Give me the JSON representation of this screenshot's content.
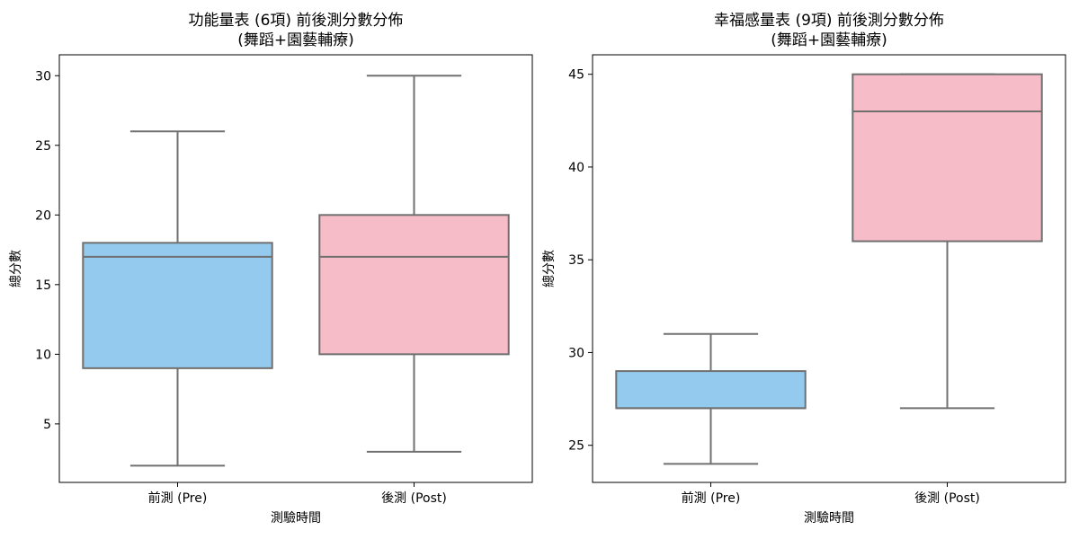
{
  "colors": {
    "pre": "#93CAEE",
    "post": "#F6BCC7",
    "stroke": "#707070"
  },
  "chart_data": [
    {
      "type": "box",
      "title": [
        "功能量表 (6項) 前後測分數分佈",
        "(舞蹈+園藝輔療)"
      ],
      "xlabel": "測驗時間",
      "ylabel": "總分數",
      "categories": [
        "前測 (Pre)",
        "後測 (Post)"
      ],
      "ylim": [
        0.8,
        31.5
      ],
      "yticks": [
        5,
        10,
        15,
        20,
        25,
        30
      ],
      "boxes": [
        {
          "category": "前測 (Pre)",
          "min": 2,
          "q1": 9,
          "median": 17,
          "q3": 18,
          "max": 26
        },
        {
          "category": "後測 (Post)",
          "min": 3,
          "q1": 10,
          "median": 17,
          "q3": 20,
          "max": 30
        }
      ]
    },
    {
      "type": "box",
      "title": [
        "幸福感量表 (9項) 前後測分數分佈",
        "(舞蹈+園藝輔療)"
      ],
      "xlabel": "測驗時間",
      "ylabel": "總分數",
      "categories": [
        "前測 (Pre)",
        "後測 (Post)"
      ],
      "ylim": [
        23.0,
        46.05
      ],
      "yticks": [
        25,
        30,
        35,
        40,
        45
      ],
      "boxes": [
        {
          "category": "前測 (Pre)",
          "min": 24,
          "q1": 27,
          "median": 27,
          "q3": 29,
          "max": 31
        },
        {
          "category": "後測 (Post)",
          "min": 27,
          "q1": 36,
          "median": 43,
          "q3": 45,
          "max": 45
        }
      ]
    }
  ]
}
